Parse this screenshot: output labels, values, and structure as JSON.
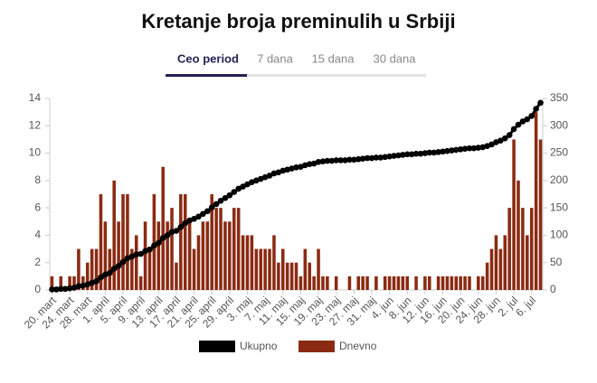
{
  "tabs": [
    "Ceo period",
    "7 dana",
    "15 dana",
    "30 dana"
  ],
  "chart_data": {
    "type": "combo",
    "title": "Kretanje broja preminulih u Srbiji",
    "categories": [
      "20. mart",
      null,
      null,
      null,
      "24. mart",
      null,
      null,
      null,
      "28. mart",
      null,
      null,
      null,
      "1. april",
      null,
      null,
      null,
      "5. april",
      null,
      null,
      null,
      "9. april",
      null,
      null,
      null,
      "13. april",
      null,
      null,
      null,
      "17. april",
      null,
      null,
      null,
      "21. april",
      null,
      null,
      null,
      "25. april",
      null,
      null,
      null,
      "29. april",
      null,
      null,
      null,
      "3. maj",
      null,
      null,
      null,
      "7. maj",
      null,
      null,
      null,
      "11. maj",
      null,
      null,
      null,
      "15. maj",
      null,
      null,
      null,
      "19. maj",
      null,
      null,
      null,
      "23. maj",
      null,
      null,
      null,
      "27. maj",
      null,
      null,
      null,
      "31. maj",
      null,
      null,
      null,
      "4. jun",
      null,
      null,
      null,
      "8. jun",
      null,
      null,
      null,
      "12. jun",
      null,
      null,
      null,
      "16. jun",
      null,
      null,
      null,
      "20. jun",
      null,
      null,
      null,
      "24. jun",
      null,
      null,
      null,
      "28. jun",
      null,
      null,
      null,
      "2. jul",
      null,
      null,
      null,
      "6. jul",
      null,
      null
    ],
    "series": [
      {
        "name": "Ukupno",
        "color": "#000000",
        "type": "line",
        "axis": "y2",
        "values": [
          1,
          1,
          2,
          2,
          3,
          4,
          7,
          8,
          10,
          13,
          16,
          23,
          28,
          31,
          39,
          44,
          51,
          58,
          61,
          65,
          66,
          71,
          74,
          81,
          86,
          95,
          100,
          106,
          108,
          115,
          122,
          127,
          130,
          134,
          139,
          144,
          151,
          157,
          163,
          168,
          173,
          179,
          185,
          189,
          193,
          197,
          200,
          203,
          206,
          209,
          213,
          215,
          218,
          220,
          222,
          224,
          225,
          228,
          230,
          231,
          234,
          235,
          236,
          236,
          237,
          237,
          237,
          238,
          238,
          239,
          240,
          241,
          241,
          242,
          242,
          243,
          244,
          245,
          246,
          247,
          248,
          248,
          249,
          249,
          250,
          251,
          251,
          252,
          253,
          254,
          255,
          256,
          257,
          258,
          259,
          259,
          260,
          261,
          263,
          266,
          270,
          273,
          277,
          283,
          294,
          302,
          308,
          312,
          318,
          331,
          342
        ]
      },
      {
        "name": "Dnevno",
        "color": "#8b2a12",
        "type": "bar",
        "values": [
          1,
          0,
          1,
          0,
          1,
          1,
          3,
          1,
          2,
          3,
          3,
          7,
          5,
          3,
          8,
          5,
          7,
          7,
          3,
          4,
          1,
          5,
          3,
          7,
          5,
          9,
          5,
          6,
          2,
          7,
          7,
          5,
          3,
          4,
          5,
          5,
          7,
          6,
          6,
          5,
          5,
          6,
          6,
          4,
          4,
          4,
          3,
          3,
          3,
          3,
          4,
          2,
          3,
          2,
          2,
          2,
          1,
          3,
          2,
          1,
          3,
          1,
          1,
          0,
          1,
          0,
          0,
          1,
          0,
          1,
          1,
          1,
          0,
          1,
          0,
          1,
          1,
          1,
          1,
          1,
          1,
          0,
          1,
          0,
          1,
          1,
          0,
          1,
          1,
          1,
          1,
          1,
          1,
          1,
          1,
          0,
          1,
          1,
          2,
          3,
          4,
          3,
          4,
          6,
          11,
          8,
          6,
          4,
          6,
          13,
          11
        ]
      }
    ],
    "ylim": [
      0,
      14
    ],
    "yticks": [
      0,
      2,
      4,
      6,
      8,
      10,
      12,
      14
    ],
    "y2lim": [
      0,
      350
    ],
    "y2ticks": [
      0,
      50,
      100,
      150,
      200,
      250,
      300,
      350
    ],
    "grid": false,
    "legend": "bottom"
  }
}
